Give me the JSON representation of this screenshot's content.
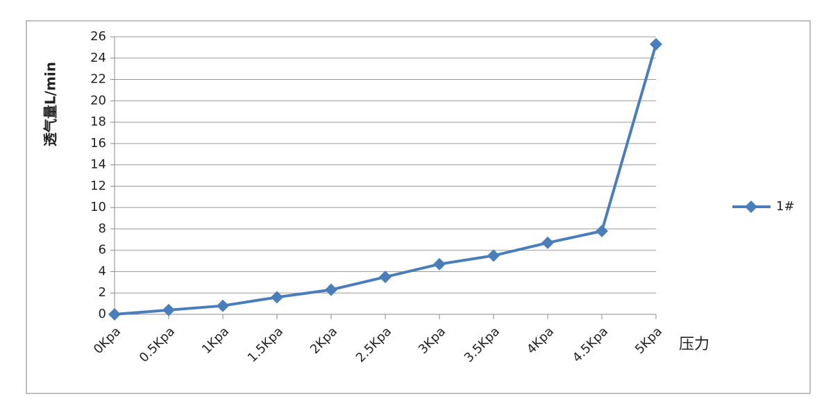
{
  "chart_data": {
    "type": "line",
    "x_label": "压力",
    "y_label": "透气量L/min",
    "categories": [
      "0Kpa",
      "0.5Kpa",
      "1Kpa",
      "1.5Kpa",
      "2Kpa",
      "2.5Kpa",
      "3Kpa",
      "3.5Kpa",
      "4Kpa",
      "4.5Kpa",
      "5Kpa"
    ],
    "series": [
      {
        "name": "1#",
        "color": "#4a7ebb",
        "values": [
          0,
          0.4,
          0.8,
          1.6,
          2.3,
          3.5,
          4.7,
          5.5,
          6.7,
          7.8,
          25.3
        ]
      }
    ],
    "ylim": [
      0,
      26
    ],
    "yticks": [
      0,
      2,
      4,
      6,
      8,
      10,
      12,
      14,
      16,
      18,
      20,
      22,
      24,
      26
    ],
    "grid": true,
    "legend": "right"
  }
}
